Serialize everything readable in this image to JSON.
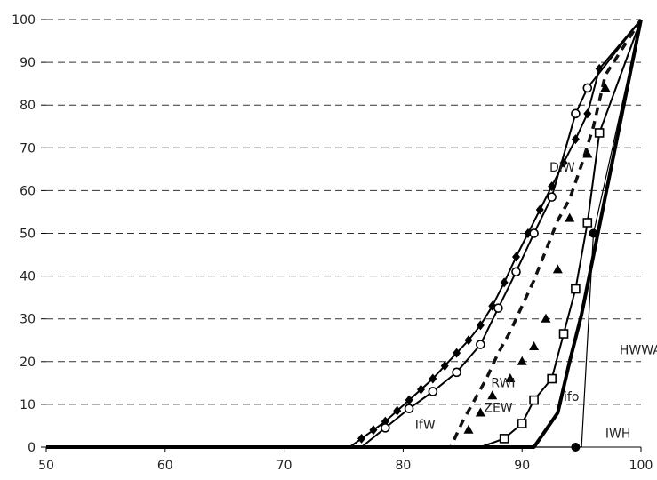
{
  "chart_data": {
    "type": "line",
    "xlim": [
      50,
      100
    ],
    "ylim": [
      0,
      100
    ],
    "x_ticks": [
      "50",
      "60",
      "70",
      "80",
      "90",
      "100"
    ],
    "y_ticks": [
      "0",
      "10",
      "20",
      "30",
      "40",
      "50",
      "60",
      "70",
      "80",
      "90",
      "100"
    ],
    "grid": "horizontal dashed",
    "legend": "none",
    "series": [
      {
        "name": "DIW",
        "style": "diamond",
        "points": [
          [
            50,
            0
          ],
          [
            75.5,
            0
          ],
          [
            76.5,
            2
          ],
          [
            77.5,
            4
          ],
          [
            78.5,
            6
          ],
          [
            79.5,
            8.5
          ],
          [
            80.5,
            11
          ],
          [
            81.5,
            13.5
          ],
          [
            82.5,
            16
          ],
          [
            83.5,
            19
          ],
          [
            84.5,
            22
          ],
          [
            85.5,
            25
          ],
          [
            86.5,
            28.5
          ],
          [
            87.5,
            33
          ],
          [
            88.5,
            38.5
          ],
          [
            89.5,
            44.5
          ],
          [
            90.5,
            50
          ],
          [
            91.5,
            55.5
          ],
          [
            92.5,
            61
          ],
          [
            93.5,
            66.5
          ],
          [
            94.5,
            72
          ],
          [
            95.5,
            78
          ],
          [
            96.5,
            88.5
          ],
          [
            100,
            100
          ]
        ]
      },
      {
        "name": "IfW",
        "style": "circle",
        "points": [
          [
            50,
            0
          ],
          [
            76.5,
            0
          ],
          [
            78.5,
            4.5
          ],
          [
            80.5,
            9
          ],
          [
            82.5,
            13
          ],
          [
            84.5,
            17.5
          ],
          [
            86.5,
            24
          ],
          [
            88,
            32.5
          ],
          [
            89.5,
            41
          ],
          [
            91,
            50
          ],
          [
            92.5,
            58.5
          ],
          [
            94.5,
            78
          ],
          [
            95.5,
            84
          ],
          [
            100,
            100
          ]
        ]
      },
      {
        "name": "RWI",
        "style": "dash",
        "points": [
          [
            50,
            0
          ],
          [
            84,
            0
          ],
          [
            85,
            6
          ],
          [
            86,
            11
          ],
          [
            87,
            16
          ],
          [
            88,
            22
          ],
          [
            89,
            27
          ],
          [
            90,
            33
          ],
          [
            91,
            39
          ],
          [
            92,
            46
          ],
          [
            93,
            53
          ],
          [
            94,
            58
          ],
          [
            95,
            66
          ],
          [
            96,
            75
          ],
          [
            97,
            87
          ],
          [
            100,
            100
          ]
        ]
      },
      {
        "name": "ZEW",
        "style": "triangle",
        "points": [
          [
            50,
            0
          ],
          [
            84,
            0
          ],
          [
            85.5,
            4
          ],
          [
            86.5,
            8
          ],
          [
            87.5,
            12
          ],
          [
            89,
            16
          ],
          [
            90,
            20
          ],
          [
            91,
            23.5
          ],
          [
            92,
            30
          ],
          [
            93,
            41.5
          ],
          [
            94,
            53.5
          ],
          [
            95.5,
            68.5
          ],
          [
            97,
            84
          ],
          [
            100,
            100
          ]
        ]
      },
      {
        "name": "ifo",
        "style": "square",
        "points": [
          [
            50,
            0
          ],
          [
            86.5,
            0
          ],
          [
            88.5,
            2
          ],
          [
            90,
            5.5
          ],
          [
            91,
            11
          ],
          [
            92.5,
            16
          ],
          [
            93.5,
            26.5
          ],
          [
            94.5,
            37
          ],
          [
            95.5,
            52.5
          ],
          [
            96.5,
            73.5
          ],
          [
            100,
            100
          ]
        ]
      },
      {
        "name": "IWH",
        "style": "dot",
        "points": [
          [
            50,
            0
          ],
          [
            95,
            0
          ],
          [
            96,
            50
          ],
          [
            100,
            100
          ]
        ]
      },
      {
        "name": "HWWA",
        "style": "thick",
        "points": [
          [
            50,
            0
          ],
          [
            91,
            0
          ],
          [
            93,
            8
          ],
          [
            94,
            20
          ],
          [
            95,
            31
          ],
          [
            100,
            100
          ]
        ]
      }
    ],
    "labels": [
      {
        "text": "DIW",
        "x": 92.3,
        "y": 64.5
      },
      {
        "text": "RWI",
        "x": 87.4,
        "y": 14
      },
      {
        "text": "ZEW",
        "x": 86.8,
        "y": 8.2
      },
      {
        "text": "IfW",
        "x": 81.0,
        "y": 4.3
      },
      {
        "text": "ifo",
        "x": 93.5,
        "y": 10.8
      },
      {
        "text": "HWWA",
        "x": 98.2,
        "y": 21.7
      },
      {
        "text": "IWH",
        "x": 97.0,
        "y": 2.2
      }
    ]
  }
}
